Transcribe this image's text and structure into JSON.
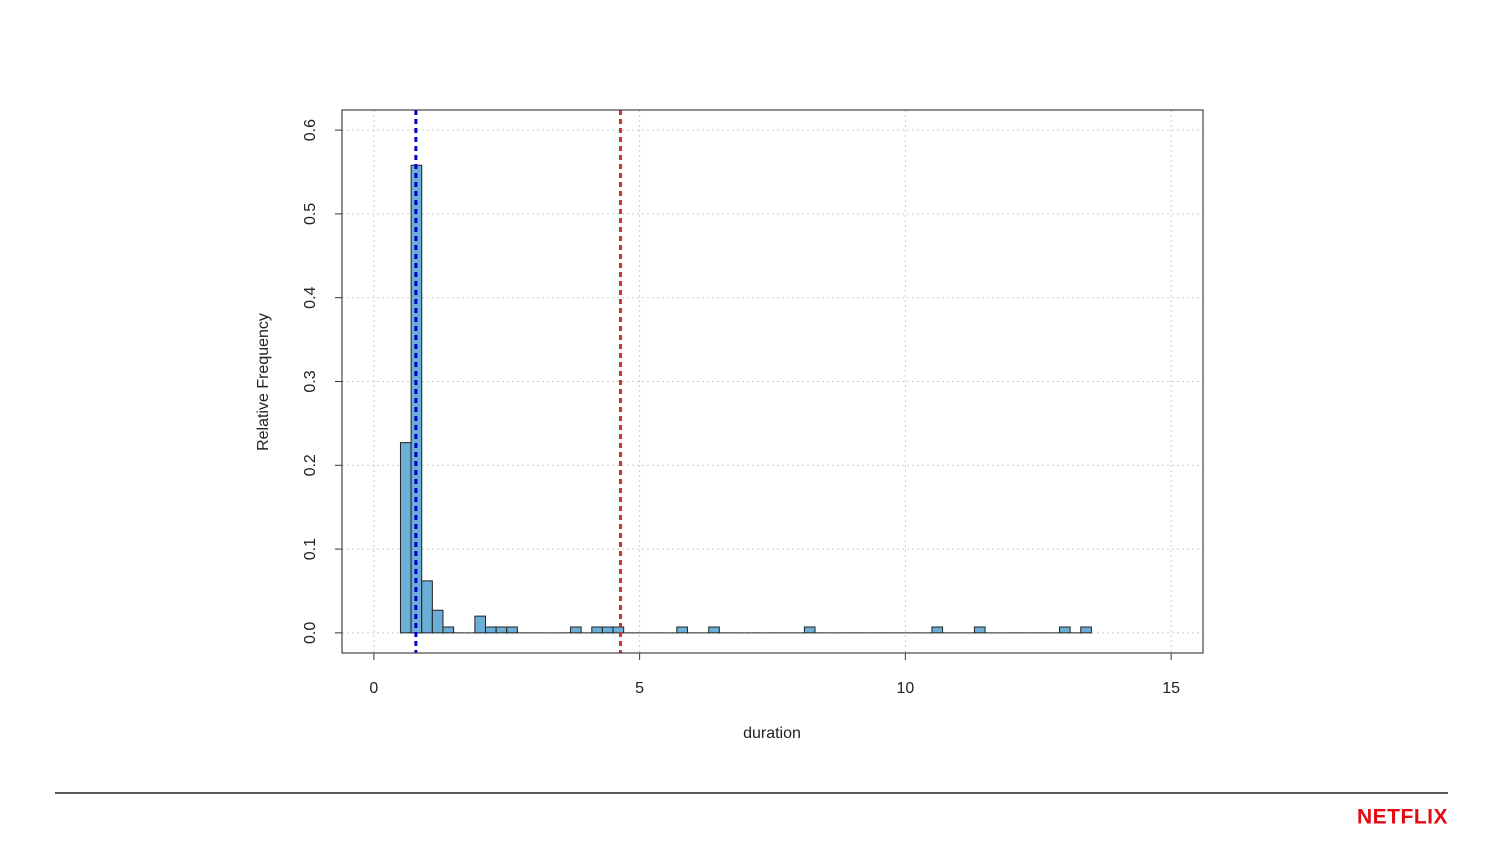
{
  "chart_data": {
    "type": "histogram",
    "x_label": "duration",
    "y_label": "Relative Frequency",
    "bins": [
      0.5,
      0.7,
      0.9,
      1.1,
      1.3,
      1.5,
      1.7,
      1.9,
      2.1,
      2.3,
      2.5,
      2.7,
      2.9,
      3.1,
      3.3,
      3.5,
      3.7,
      3.9,
      4.1,
      4.3,
      4.5,
      4.7,
      4.9,
      5.1,
      5.3,
      5.5,
      5.7,
      5.9,
      6.1,
      6.3,
      6.5,
      6.7,
      6.9,
      7.1,
      7.3,
      7.5,
      7.7,
      7.9,
      8.1,
      8.3,
      8.5,
      8.7,
      8.9,
      9.1,
      9.3,
      9.5,
      9.7,
      9.9,
      10.1,
      10.3,
      10.5,
      10.7,
      10.9,
      11.1,
      11.3,
      11.5,
      11.7,
      11.9,
      12.1,
      12.3,
      12.5,
      12.7,
      12.9,
      13.1,
      13.3,
      13.5
    ],
    "values": [
      0.227,
      0.558,
      0.062,
      0.027,
      0.007,
      0,
      0,
      0.02,
      0.007,
      0.007,
      0.007,
      0,
      0,
      0,
      0,
      0,
      0.007,
      0,
      0.007,
      0.007,
      0.007,
      0,
      0,
      0,
      0,
      0,
      0.007,
      0,
      0,
      0.007,
      0,
      0,
      0,
      0,
      0,
      0,
      0,
      0,
      0.007,
      0,
      0,
      0,
      0,
      0,
      0,
      0,
      0,
      0,
      0,
      0,
      0.007,
      0,
      0,
      0,
      0.007,
      0,
      0,
      0,
      0,
      0,
      0,
      0,
      0.007,
      0,
      0.007
    ],
    "color": "#6baed6",
    "vlines": [
      {
        "value": 0.79,
        "color": "#0000cc"
      },
      {
        "value": 4.64,
        "color": "#cc3333"
      }
    ],
    "xlim": [
      -0.6,
      15.6
    ],
    "xticks": [
      0,
      5,
      10,
      15
    ],
    "ylim": [
      -0.024,
      0.624
    ],
    "yticks": [
      {
        "value": 0,
        "label": "0.0"
      },
      0.1,
      0.2,
      0.3,
      0.4,
      0.5,
      0.6
    ],
    "grid": true
  },
  "footer_logo": "NETFLIX"
}
